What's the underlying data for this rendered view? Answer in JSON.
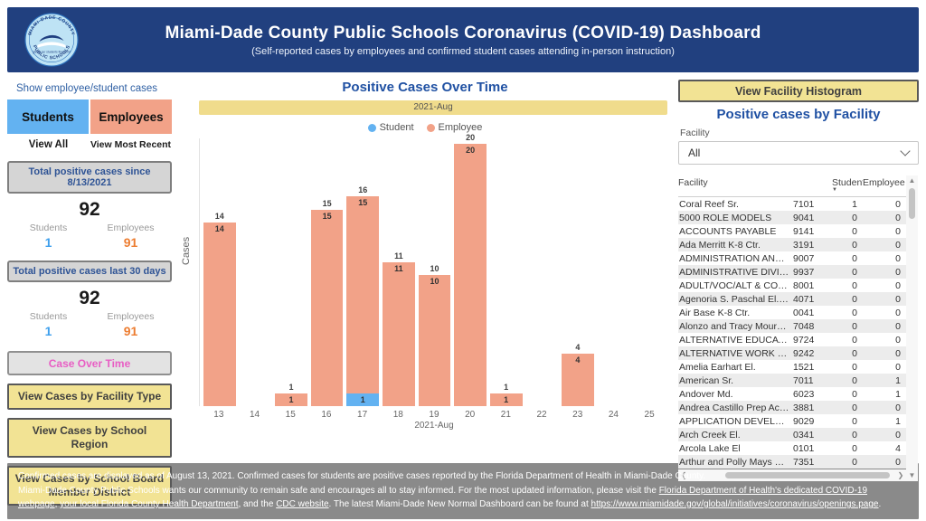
{
  "header": {
    "title": "Miami-Dade County Public Schools Coronavirus (COVID-19) Dashboard",
    "subtitle": "(Self-reported cases by employees and confirmed student cases attending in-person instruction)",
    "logo": {
      "ring_top": "MIAMI-DADE COUNTY",
      "ring_bottom": "PUBLIC SCHOOLS",
      "motto": "giving our students the world"
    }
  },
  "sidebar": {
    "heading": "Show employee/student cases",
    "students_button": "Students",
    "employees_button": "Employees",
    "view_all": "View All",
    "view_most_recent": "View Most Recent",
    "stat_boxes": [
      {
        "title": "Total positive cases since 8/13/2021",
        "total": "92",
        "students_label": "Students",
        "students": "1",
        "employees_label": "Employees",
        "employees": "91"
      },
      {
        "title": "Total positive cases last 30 days",
        "total": "92",
        "students_label": "Students",
        "students": "1",
        "employees_label": "Employees",
        "employees": "91"
      }
    ],
    "case_over_time_button": "Case Over Time",
    "nav_buttons": [
      "View Cases by Facility Type",
      "View Cases by School Region",
      "View Cases by School Board Member District"
    ]
  },
  "chart_data": {
    "type": "bar",
    "stacked": true,
    "title": "Positive Cases Over Time",
    "period_banner": "2021-Aug",
    "xlabel": "2021-Aug",
    "ylabel": "Cases",
    "ylim": [
      0,
      20
    ],
    "grid": false,
    "legend_position": "top",
    "categories": [
      "13",
      "14",
      "15",
      "16",
      "17",
      "18",
      "19",
      "20",
      "21",
      "22",
      "23",
      "24",
      "25"
    ],
    "series": [
      {
        "name": "Student",
        "color": "#63B2F1",
        "values": [
          0,
          0,
          0,
          0,
          1,
          0,
          0,
          0,
          0,
          0,
          0,
          0,
          0
        ]
      },
      {
        "name": "Employee",
        "color": "#F2A288",
        "values": [
          14,
          0,
          1,
          15,
          15,
          11,
          10,
          20,
          1,
          0,
          4,
          0,
          0
        ]
      }
    ],
    "totals": [
      14,
      0,
      1,
      15,
      16,
      11,
      10,
      20,
      1,
      0,
      4,
      0,
      0
    ]
  },
  "facility_panel": {
    "histogram_button": "View Facility Histogram",
    "title": "Positive cases by Facility",
    "filter_label": "Facility",
    "filter_value": "All",
    "table": {
      "headers": [
        "Facility",
        "",
        "Student",
        "Employee"
      ],
      "rows": [
        [
          "Coral Reef Sr.",
          "7101",
          "1",
          "0"
        ],
        [
          "5000 ROLE MODELS",
          "9041",
          "0",
          "0"
        ],
        [
          "ACCOUNTS PAYABLE",
          "9141",
          "0",
          "0"
        ],
        [
          "Ada Merritt K-8 Ctr.",
          "3191",
          "0",
          "0"
        ],
        [
          "ADMINISTRATION AND C...",
          "9007",
          "0",
          "0"
        ],
        [
          "ADMINISTRATIVE DIVISION",
          "9937",
          "0",
          "0"
        ],
        [
          "ADULT/VOC/ALT & COM...",
          "8001",
          "0",
          "0"
        ],
        [
          "Agenoria S. Paschal El. /Oli...",
          "4071",
          "0",
          "0"
        ],
        [
          "Air Base K-8 Ctr.",
          "0041",
          "0",
          "0"
        ],
        [
          "Alonzo and Tracy Mournin...",
          "7048",
          "0",
          "0"
        ],
        [
          "ALTERNATIVE EDUCATION",
          "9724",
          "0",
          "0"
        ],
        [
          "ALTERNATIVE WORK SCHE...",
          "9242",
          "0",
          "0"
        ],
        [
          "Amelia Earhart El.",
          "1521",
          "0",
          "0"
        ],
        [
          "American Sr.",
          "7011",
          "0",
          "1"
        ],
        [
          "Andover Md.",
          "6023",
          "0",
          "1"
        ],
        [
          "Andrea Castillo Prep Acad...",
          "3881",
          "0",
          "0"
        ],
        [
          "APPLICATION DEVELOPME...",
          "9029",
          "0",
          "1"
        ],
        [
          "Arch Creek El.",
          "0341",
          "0",
          "0"
        ],
        [
          "Arcola Lake El",
          "0101",
          "0",
          "4"
        ],
        [
          "Arthur and Polly Mays Con...",
          "7351",
          "0",
          "0"
        ]
      ]
    }
  },
  "footer": {
    "lines": [
      [
        {
          "text": "Confirmed cases are displayed as of August 13, 2021. Confirmed cases for students are positive cases reported by the Florida Department of Health in Miami-Dade County.",
          "link": false
        }
      ],
      [
        {
          "text": "Miami-Dade County Public Schools wants our community to remain safe and encourages all to stay informed. For the most updated information, please visit the ",
          "link": false
        },
        {
          "text": "Florida Department of Health's dedicated COVID-19 webpage",
          "link": true
        },
        {
          "text": ", ",
          "link": false
        },
        {
          "text": "your local Florida County Health Department",
          "link": true
        },
        {
          "text": ", and the ",
          "link": false
        },
        {
          "text": "CDC website",
          "link": true
        },
        {
          "text": ". The latest Miami-Dade New Normal Dashboard can be found at ",
          "link": false
        },
        {
          "text": "https://www.miamidade.gov/global/initiatives/coronavirus/openings.page",
          "link": true
        },
        {
          "text": ".",
          "link": false
        }
      ]
    ]
  },
  "colors": {
    "header_navy": "#21407F",
    "banner_yellow": "#F0DC8C",
    "button_yellow": "#F2E394",
    "student_blue": "#63B2F1",
    "employee_salmon": "#F2A288",
    "accent_pink": "#E85EC4",
    "students_value_blue": "#3FA0ED",
    "employees_value_orange": "#ED7D31"
  }
}
